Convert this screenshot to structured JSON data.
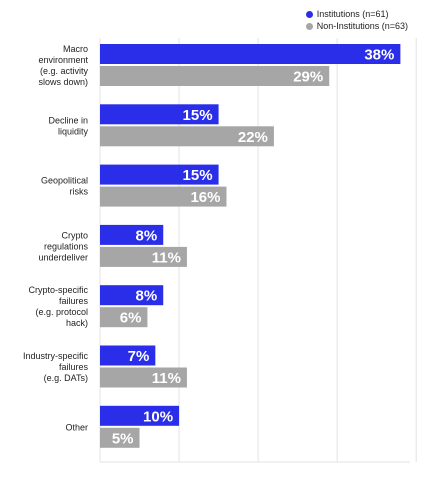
{
  "chart_data": {
    "type": "bar",
    "orientation": "horizontal",
    "title": "",
    "xlabel": "",
    "ylabel": "",
    "categories": [
      [
        "Macro",
        "environment",
        "(e.g. activity",
        "slows down)"
      ],
      [
        "Decline in",
        "liquidity"
      ],
      [
        "Geopolitical",
        "risks"
      ],
      [
        "Crypto",
        "regulations",
        "underdeliver"
      ],
      [
        "Crypto-specific",
        "failures",
        "(e.g. protocol",
        "hack)"
      ],
      [
        "Industry-specific",
        "failures",
        "(e.g. DATs)"
      ],
      [
        "Other"
      ]
    ],
    "series": [
      {
        "name": "Institutions (n=61)",
        "color": "#2b2ee8",
        "values": [
          38,
          15,
          15,
          8,
          8,
          7,
          10
        ]
      },
      {
        "name": "Non-Institutions (n=63)",
        "color": "#a6a6a6",
        "values": [
          29,
          22,
          16,
          11,
          6,
          11,
          5
        ]
      }
    ],
    "value_suffix": "%",
    "xlim": [
      0,
      40
    ],
    "grid": true,
    "legend_position": "top-right"
  }
}
